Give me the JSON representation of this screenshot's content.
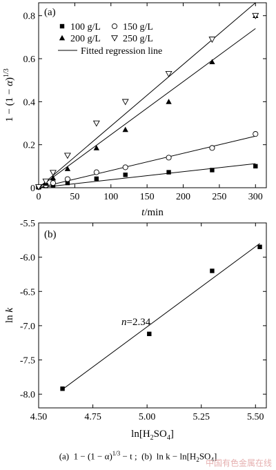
{
  "chart_data": [
    {
      "panel": "(a)",
      "type": "scatter",
      "xlabel_italic": "t",
      "xlabel_unit": "/min",
      "ylabel": "1 − (1 − α)^1/3",
      "xlim": [
        0,
        315
      ],
      "ylim": [
        0,
        0.86
      ],
      "xticks": [
        0,
        50,
        100,
        150,
        200,
        250,
        300
      ],
      "yticks": [
        0,
        0.2,
        0.4,
        0.6,
        0.8
      ],
      "ytick_labels": [
        "0",
        "0.2",
        "0.4",
        "0.6",
        "0.8"
      ],
      "grid": false,
      "legend_position": "top-left",
      "series": [
        {
          "name": "100 g/L",
          "marker": "square-filled",
          "x": [
            0,
            10,
            20,
            40,
            80,
            120,
            180,
            240,
            300
          ],
          "y": [
            0.002,
            0.008,
            0.012,
            0.022,
            0.042,
            0.06,
            0.072,
            0.082,
            0.1
          ],
          "fit_y_end": 0.112
        },
        {
          "name": "150 g/L",
          "marker": "circle-open",
          "x": [
            0,
            10,
            20,
            40,
            80,
            120,
            180,
            240,
            300
          ],
          "y": [
            0.004,
            0.012,
            0.022,
            0.04,
            0.072,
            0.095,
            0.14,
            0.185,
            0.25
          ],
          "fit_y_end": 0.24
        },
        {
          "name": "200 g/L",
          "marker": "triangle-up-filled",
          "x": [
            0,
            10,
            20,
            40,
            80,
            120,
            180,
            240,
            300
          ],
          "y": [
            0.004,
            0.02,
            0.045,
            0.088,
            0.185,
            0.27,
            0.4,
            0.585,
            0.8
          ],
          "fit_y_end": 0.74
        },
        {
          "name": "250 g/L",
          "marker": "triangle-down-open",
          "x": [
            0,
            10,
            20,
            40,
            80,
            120,
            180,
            240,
            300
          ],
          "y": [
            0.004,
            0.03,
            0.07,
            0.15,
            0.3,
            0.4,
            0.53,
            0.69,
            0.8
          ],
          "fit_y_end": 0.86
        }
      ],
      "fit_legend": "Fitted regression line"
    },
    {
      "panel": "(b)",
      "type": "scatter",
      "xlabel": "ln[H2SO4]",
      "ylabel_italic": "k",
      "ylabel_prefix": "ln ",
      "xlim": [
        4.5,
        5.55
      ],
      "ylim": [
        -8.2,
        -5.5
      ],
      "xticks": [
        4.5,
        4.75,
        5.0,
        5.25,
        5.5
      ],
      "xtick_labels": [
        "4.50",
        "4.75",
        "5.00",
        "5.25",
        "5.50"
      ],
      "yticks": [
        -5.5,
        -6.0,
        -6.5,
        -7.0,
        -7.5,
        -8.0
      ],
      "ytick_labels": [
        "-5.5",
        "-6.0",
        "-6.5",
        "-7.0",
        "-7.5",
        "-8.0"
      ],
      "grid": false,
      "points": {
        "x": [
          4.61,
          5.01,
          5.3,
          5.52
        ],
        "y": [
          -7.92,
          -7.12,
          -6.2,
          -5.85
        ]
      },
      "fit": {
        "x": [
          4.61,
          5.52
        ],
        "y": [
          -7.93,
          -5.8
        ]
      },
      "annotation": "n=2.34"
    }
  ],
  "caption": {
    "a_label": "(a)",
    "a_formula": "1 − (1 − α)",
    "a_exp": "1/3",
    "a_tail": " − t ;",
    "b_label": "(b)",
    "b_formula": "ln k − ln[H",
    "b_sub": "2",
    "b_tail": "SO",
    "b_sub2": "4",
    "b_close": "]"
  },
  "watermark": "中国有色金属在线"
}
